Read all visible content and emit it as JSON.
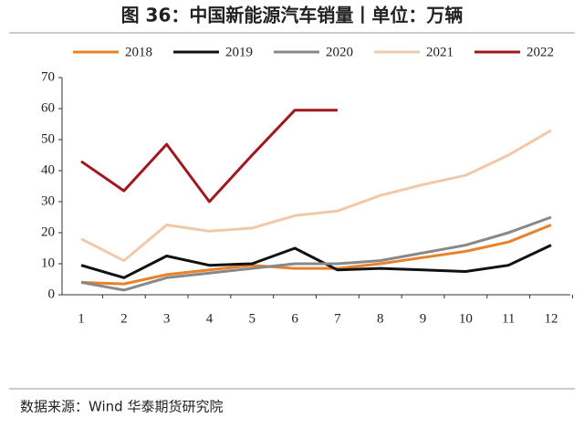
{
  "chart_data": {
    "type": "line",
    "title": "图 36：中国新能源汽车销量丨单位：万辆",
    "source": "数据来源：Wind 华泰期货研究院",
    "categories": [
      "1",
      "2",
      "3",
      "4",
      "5",
      "6",
      "7",
      "8",
      "9",
      "10",
      "11",
      "12"
    ],
    "series": [
      {
        "name": "2018",
        "color": "#e8822a",
        "values": [
          4,
          3.5,
          6.5,
          8,
          9.5,
          8.5,
          8.5,
          10,
          12,
          14,
          17,
          22.5
        ]
      },
      {
        "name": "2019",
        "color": "#111111",
        "values": [
          9.5,
          5.5,
          12.5,
          9.5,
          10,
          15,
          8,
          8.5,
          8,
          7.5,
          9.5,
          16
        ]
      },
      {
        "name": "2020",
        "color": "#888888",
        "values": [
          4,
          1.5,
          5.5,
          7,
          8.5,
          10,
          10,
          11,
          13.5,
          16,
          20,
          25
        ]
      },
      {
        "name": "2021",
        "color": "#f2c8a8",
        "values": [
          18,
          11,
          22.5,
          20.5,
          21.5,
          25.5,
          27,
          32,
          35.5,
          38.5,
          45,
          53
        ]
      },
      {
        "name": "2022",
        "color": "#a0171e",
        "values": [
          43,
          33.5,
          48.5,
          30,
          45,
          59.5,
          59.5,
          null,
          null,
          null,
          null,
          null
        ]
      }
    ],
    "ylim": [
      0,
      70
    ],
    "yticks": [
      0,
      10,
      20,
      30,
      40,
      50,
      60,
      70
    ],
    "grid": false
  }
}
